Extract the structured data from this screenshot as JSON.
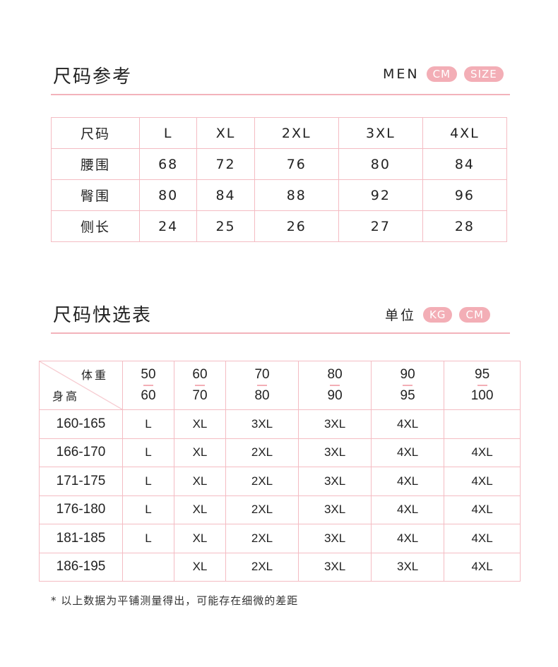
{
  "section1": {
    "title": "尺码参考",
    "label": "MEN",
    "badges": [
      "CM",
      "SIZE"
    ],
    "rows": [
      [
        "尺码",
        "L",
        "XL",
        "2XL",
        "3XL",
        "4XL"
      ],
      [
        "腰围",
        "68",
        "72",
        "76",
        "80",
        "84"
      ],
      [
        "臀围",
        "80",
        "84",
        "88",
        "92",
        "96"
      ],
      [
        "侧长",
        "24",
        "25",
        "26",
        "27",
        "28"
      ]
    ]
  },
  "section2": {
    "title": "尺码快选表",
    "label": "单位",
    "badges": [
      "KG",
      "CM"
    ],
    "corner": {
      "weight": "体重",
      "height": "身高"
    },
    "weights": [
      [
        "50",
        "60"
      ],
      [
        "60",
        "70"
      ],
      [
        "70",
        "80"
      ],
      [
        "80",
        "90"
      ],
      [
        "90",
        "95"
      ],
      [
        "95",
        "100"
      ]
    ],
    "rows": [
      [
        "160-165",
        "L",
        "XL",
        "3XL",
        "3XL",
        "4XL",
        ""
      ],
      [
        "166-170",
        "L",
        "XL",
        "2XL",
        "3XL",
        "4XL",
        "4XL"
      ],
      [
        "171-175",
        "L",
        "XL",
        "2XL",
        "3XL",
        "4XL",
        "4XL"
      ],
      [
        "176-180",
        "L",
        "XL",
        "2XL",
        "3XL",
        "4XL",
        "4XL"
      ],
      [
        "181-185",
        "L",
        "XL",
        "2XL",
        "3XL",
        "4XL",
        "4XL"
      ],
      [
        "186-195",
        "",
        "XL",
        "2XL",
        "3XL",
        "3XL",
        "4XL"
      ]
    ]
  },
  "note": "* 以上数据为平铺测量得出，可能存在细微的差距",
  "colors": {
    "accent": "#f3aeb6",
    "border": "#f4bcc3"
  }
}
